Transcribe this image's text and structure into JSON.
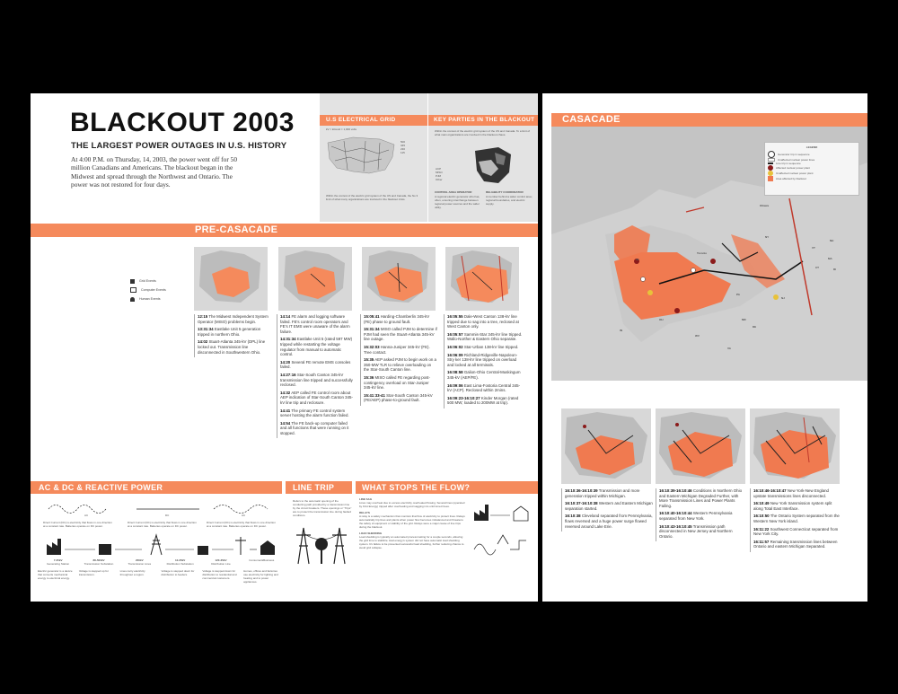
{
  "header": {
    "title": "BLACKOUT 2003",
    "subtitle": "THE LARGEST POWER OUTAGES IN U.S. HISTORY",
    "intro": "At 4:00 P.M. on Thursday, 14, 2003, the power went off for 50 million Canadians and Americans. The blackout began in the Midwest and spread through the Northwest and Ontario. The power was not restored for four days."
  },
  "grid_panel": {
    "title": "U.S ELECTRICAL GRID",
    "scale_note": "kV = kilovolt = 1,000 volts",
    "legend": [
      "500",
      "345",
      "230",
      "115"
    ],
    "caption": "Within the context of the electric grid system of the US and Canada, the No 3 limit of what many organizations are involved in the blackout crisis."
  },
  "parties_panel": {
    "title": "KEY PARTIES IN THE BLACKOUT",
    "intro": "Within the context of the electric grid system of the US and Canada. To a limit of what main organizations are involved in the blackout chaos.",
    "legend": [
      "ACP",
      "MISO",
      "PJM",
      "Other"
    ],
    "col1_title": "CONTROL AREA OPERATOR",
    "col1_text": "A regional electric generator who has, often, ensuring interchange between regional power sources and the wider utility.",
    "col2_title": "RELIABILITY COORDINATOR",
    "col2_text": "A member behind a wider control area; regional boundaries, and electric supply."
  },
  "precascade": {
    "title": "PRE-CASACADE",
    "legend": [
      "Grid Events",
      "Computer Events",
      "Human Events"
    ],
    "col1": [
      {
        "time": "12:15",
        "text": "The Midwest Independent System Operator (MISO) problems begin."
      },
      {
        "time": "13:31:34",
        "text": "Eastlake Unit 5 generation tripped in northern Ohio."
      },
      {
        "time": "14:02",
        "text": "Stuart-Atlanta 345-kV (DPL) line locked out. Transmission line disconnected in Southwestern Ohio."
      }
    ],
    "col2": [
      {
        "time": "14:14",
        "text": "FE alarm and logging software failed. FE's control room operators and FE's IT EMS were unaware of the alarm failure."
      },
      {
        "time": "14:31:34",
        "text": "Eastlake Unit 5 (rated 597 MW) tripped while restarting the voltage regulator from manual to automatic control."
      },
      {
        "time": "14:20",
        "text": "Several FE remote EMS consoles failed."
      },
      {
        "time": "14:27:16",
        "text": "Star-South Canton 345-kV transmission line tripped and successfully reclosed."
      },
      {
        "time": "14:32",
        "text": "AEP called FE control room about AEP indication of Star-South Canton 345-kV line trip and reclosure."
      },
      {
        "time": "14:41",
        "text": "The primary FE control system server hosting the alarm function failed."
      },
      {
        "time": "14:54",
        "text": "The FE back-up computer failed and all functions that were running on it stopped."
      }
    ],
    "col3": [
      {
        "time": "15:05:41",
        "text": "Harding-Chamberlin 345-kV (FE) phase to ground fault."
      },
      {
        "time": "15:31:34",
        "text": "MISO called PJM to determine if PJM had seen the Stuart-Atlanta 345-kV line outage."
      },
      {
        "time": "15:32:03",
        "text": "Hanna-Juniper 345-kV (FE). Tree contact."
      },
      {
        "time": "15:35",
        "text": "AEP asked PJM to begin work on a 350-MW TLR to relieve overloading on the Star-South Canton line."
      },
      {
        "time": "15:36",
        "text": "MISO called FE regarding post-contingency overload on Star-Juniper 345-kV line."
      },
      {
        "time": "15:41:33-41",
        "text": "Star-South Canton 345-kV (FE/AEP) phase-to-ground fault."
      }
    ],
    "col4": [
      {
        "time": "16:05:55",
        "text": "Dale-West Canton 138-kV line tripped due to sag into a tree, reclosed at West Canton only."
      },
      {
        "time": "16:05:57",
        "text": "Sammis-Star 345-kV line tripped. Wallo-Norther & Eastern Ohio separate."
      },
      {
        "time": "16:06:02",
        "text": "Star-Urban 138-kV line tripped."
      },
      {
        "time": "16:06:09",
        "text": "Richland-Ridgeville-Napoleon-Stry ker 138-kV line tripped on overload and locked at all terminals."
      },
      {
        "time": "16:08:58",
        "text": "Galion-Ohio Central-Muskingum 345-kV (AEP/FE)."
      },
      {
        "time": "16:09:06",
        "text": "East Lima-Fostoria Central 345-kV (ACP). Reclosed within 2mins."
      },
      {
        "time": "16:09:23-16:10:27",
        "text": "Kinder Morgan (rated 500 MW; loaded to 200MW at trip)."
      }
    ]
  },
  "acdc": {
    "title": "AC & DC & REACTIVE POWER",
    "waves": [
      {
        "label": "AC",
        "text": "Direct Current (DC) is electricity that flows in one direction at a constant rate. Batteries operate on DC power."
      },
      {
        "label": "DC",
        "text": "Direct Current (DC) is electricity that flows in one direction at a constant rate. Batteries operate on DC power."
      },
      {
        "label": "AC",
        "text": "Direct Current (DC) is electricity that flows in one direction at a constant rate. Batteries operate on DC power."
      }
    ],
    "stages": [
      {
        "volt": "7-25kV",
        "name": "Generating Station",
        "text": "Electric generator is a device that converts mechanical energy to electrical energy."
      },
      {
        "volt": "88-500kV",
        "name": "Transmission Substation",
        "text": "Voltage is stepped up for transmission."
      },
      {
        "volt": "200kV",
        "name": "Transmission Lines",
        "text": "Lines carry electricity throughout a region."
      },
      {
        "volt": "12-35kV",
        "name": "Distribution Substation",
        "text": "Voltage is stepped down for distribution to feeders."
      },
      {
        "volt": "120-35kV",
        "name": "Distribution Line",
        "text": "Voltage is stepped down for distribution to residential and commercial customers."
      },
      {
        "volt": "",
        "name": "Consumer&Business",
        "text": "Homes, offices and factories use electricity for lighting and heating and to power appliances."
      }
    ]
  },
  "linetrip": {
    "title": "LINE TRIP",
    "text": "Refers to the automatic opening of the conducting path provided by a transmission line by the circuit breakers. These openings or \"Trips\" are to protect the transmission line during faulted conditions."
  },
  "stops": {
    "title": "WHAT STOPS THE FLOW?",
    "items": [
      {
        "title": "LINE SAG",
        "text": "Lines may overheat due to excess electricity overheated flowing. Several lines (operated by First Energy) tripped after overheating and sagging into untrimmed trees."
      },
      {
        "title": "RELAYS",
        "text": "A relay is a safety mechanism that monitors that flow of electricity to protect lines. Relays automatically trip lines and plants when power flow becomes imbalanced and threatens the safety of equipment or stability of the grid. Relays were a major cause of line trips during the blackout."
      },
      {
        "title": "LOAD SHEDDING",
        "text": "Load shedding is typically an automated process lasting for a couple seconds, allowing the grid time to stabilize. Had energy's system did not have automatic load shedding system. It's failure to be prevented successful load shedding, further reducing chance to avoid grid collapse."
      }
    ]
  },
  "cascade": {
    "title": "CASACADE",
    "legend_title": "LEGEND",
    "legend": [
      {
        "label": "Generator trip in sequence",
        "color": "#ffffff"
      },
      {
        "label": "Unaffected nuclear power lines",
        "color": "#ffffff"
      },
      {
        "label": "Line trip in sequence",
        "color": "#222222"
      },
      {
        "label": "Affected nuclear power plant",
        "color": "#8b1a1a"
      },
      {
        "label": "Unaffected nuclear power plant",
        "color": "#e8c23a"
      },
      {
        "label": "Area affected by blackout",
        "color": "#f07a50"
      }
    ],
    "places": [
      "Ottawa",
      "Toronto",
      "NY",
      "PA",
      "OH",
      "MI",
      "NH",
      "MA",
      "VT",
      "CT",
      "RI",
      "NJ",
      "MD",
      "DE",
      "IN",
      "WV",
      "VA"
    ],
    "col1": [
      {
        "time": "16:10:36-16:10:39",
        "text": "Transmission and more generation tripped within Michigan."
      },
      {
        "time": "16:10:37-16:10:38",
        "text": "Western and Eastern Michigan separation started."
      },
      {
        "time": "16:10:38",
        "text": "Cleveland separated from Pennsylvania, flows reversed and a huge power surge flowed reversed around Lake Erie."
      }
    ],
    "col2": [
      {
        "time": "16:10:39-16:10:46",
        "text": "Conditions in Northern Ohio and Eastern Michigan Degraded Further, with More Transmission Lines and Power Plants Failing."
      },
      {
        "time": "16:10:40-16:10:44",
        "text": "Western Pennsylvania separated from New York."
      },
      {
        "time": "16:10:43-16:10:45",
        "text": "Transmission path disconnected in New Jersey and Northern Ontario."
      }
    ],
    "col3": [
      {
        "time": "16:10:46-16:10:47",
        "text": "New York-New England upstate transmissions lines disconnected."
      },
      {
        "time": "16:10:49",
        "text": "New York transmission system split along Total East Interface."
      },
      {
        "time": "16:10:50",
        "text": "The Ontario System separated from the Western New York island."
      },
      {
        "time": "16:11:22",
        "text": "Southwest Connecticut separated from New York City."
      },
      {
        "time": "16:11:57",
        "text": "Remaining transmission lines between Ontario and eastern Michigan Separated."
      }
    ]
  },
  "colors": {
    "accent": "#f58a5c",
    "panel": "#e3e3e3",
    "map_land": "#d0d0d0",
    "blackout_area": "#f07a50"
  }
}
